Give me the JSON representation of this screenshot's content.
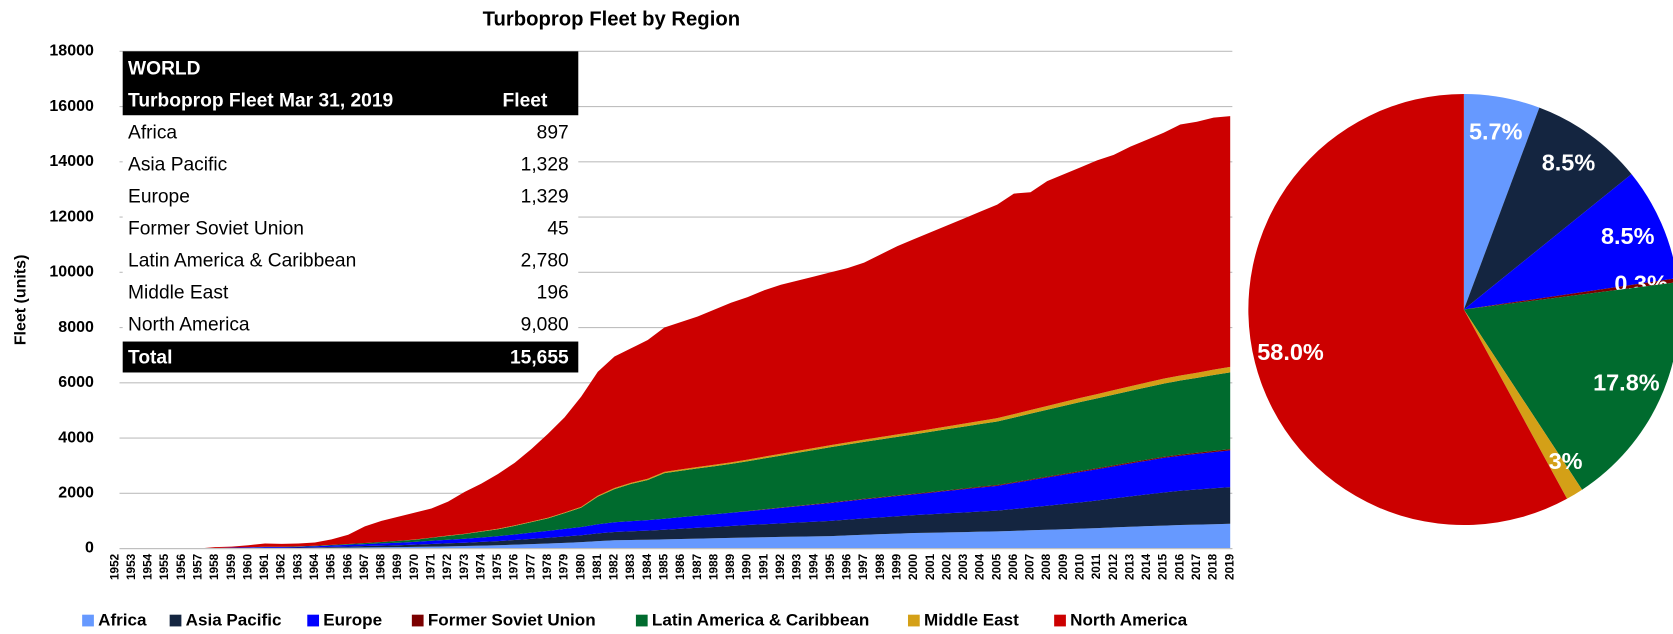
{
  "chart_data": [
    {
      "type": "area",
      "stacked": true,
      "title": "Turboprop Fleet by Region",
      "y_label": "Fleet (units)",
      "x": [
        1952,
        1953,
        1954,
        1955,
        1956,
        1957,
        1958,
        1959,
        1960,
        1961,
        1962,
        1963,
        1964,
        1965,
        1966,
        1967,
        1968,
        1969,
        1970,
        1971,
        1972,
        1973,
        1974,
        1975,
        1976,
        1977,
        1978,
        1979,
        1980,
        1981,
        1982,
        1983,
        1984,
        1985,
        1986,
        1987,
        1988,
        1989,
        1990,
        1991,
        1992,
        1993,
        1994,
        1995,
        1996,
        1997,
        1998,
        1999,
        2000,
        2001,
        2002,
        2003,
        2004,
        2005,
        2006,
        2007,
        2008,
        2009,
        2010,
        2011,
        2012,
        2013,
        2014,
        2015,
        2016,
        2017,
        2018,
        2019
      ],
      "xlim": [
        1952,
        2019
      ],
      "ylim": [
        0,
        18000
      ],
      "yticks": [
        0,
        2000,
        4000,
        6000,
        8000,
        10000,
        12000,
        14000,
        16000,
        18000
      ],
      "grid": true,
      "legend": "bottom",
      "series": [
        {
          "name": "Africa",
          "color": "#6699ff",
          "values": [
            0,
            0,
            0,
            0,
            0,
            0,
            5,
            8,
            10,
            15,
            15,
            18,
            22,
            30,
            35,
            40,
            45,
            50,
            60,
            70,
            80,
            90,
            105,
            120,
            140,
            160,
            180,
            205,
            230,
            270,
            300,
            310,
            320,
            330,
            345,
            360,
            370,
            385,
            400,
            410,
            420,
            430,
            440,
            450,
            475,
            500,
            520,
            540,
            560,
            570,
            585,
            595,
            610,
            620,
            640,
            660,
            680,
            700,
            720,
            740,
            765,
            790,
            810,
            830,
            850,
            865,
            880,
            897
          ]
        },
        {
          "name": "Asia Pacific",
          "color": "#142540",
          "values": [
            0,
            0,
            0,
            0,
            0,
            0,
            5,
            8,
            10,
            15,
            15,
            18,
            22,
            30,
            40,
            50,
            60,
            70,
            80,
            95,
            110,
            120,
            135,
            150,
            170,
            190,
            210,
            230,
            250,
            280,
            300,
            315,
            330,
            350,
            370,
            390,
            410,
            430,
            450,
            470,
            490,
            510,
            530,
            550,
            570,
            590,
            610,
            630,
            650,
            670,
            690,
            710,
            730,
            750,
            790,
            830,
            870,
            910,
            950,
            1000,
            1050,
            1100,
            1150,
            1200,
            1240,
            1270,
            1300,
            1328
          ]
        },
        {
          "name": "Europe",
          "color": "#0000ff",
          "values": [
            0,
            0,
            0,
            0,
            0,
            0,
            10,
            15,
            20,
            25,
            25,
            30,
            40,
            50,
            60,
            70,
            80,
            90,
            100,
            115,
            130,
            145,
            160,
            180,
            200,
            225,
            250,
            275,
            300,
            330,
            350,
            365,
            380,
            400,
            420,
            440,
            460,
            480,
            500,
            530,
            560,
            590,
            620,
            650,
            670,
            690,
            710,
            730,
            750,
            780,
            810,
            840,
            870,
            900,
            940,
            980,
            1020,
            1060,
            1100,
            1130,
            1160,
            1190,
            1220,
            1250,
            1270,
            1290,
            1310,
            1329
          ]
        },
        {
          "name": "Former Soviet Union",
          "color": "#7b0000",
          "values": [
            0,
            0,
            0,
            0,
            0,
            0,
            0,
            0,
            0,
            0,
            0,
            0,
            0,
            0,
            0,
            0,
            0,
            0,
            0,
            0,
            0,
            0,
            0,
            0,
            0,
            0,
            0,
            0,
            0,
            0,
            0,
            0,
            0,
            0,
            0,
            0,
            0,
            0,
            10,
            12,
            14,
            16,
            18,
            20,
            21,
            22,
            23,
            24,
            25,
            26,
            27,
            28,
            29,
            30,
            31,
            32,
            33,
            34,
            35,
            36,
            37,
            38,
            39,
            40,
            41,
            42,
            43,
            45
          ]
        },
        {
          "name": "Latin America & Caribbean",
          "color": "#006b2e",
          "values": [
            0,
            0,
            0,
            0,
            0,
            0,
            0,
            0,
            5,
            10,
            10,
            10,
            15,
            20,
            30,
            40,
            50,
            65,
            80,
            110,
            140,
            170,
            210,
            250,
            310,
            380,
            450,
            570,
            700,
            1000,
            1200,
            1350,
            1450,
            1650,
            1680,
            1710,
            1740,
            1770,
            1800,
            1840,
            1880,
            1920,
            1960,
            2000,
            2030,
            2060,
            2090,
            2120,
            2150,
            2180,
            2210,
            2240,
            2270,
            2300,
            2340,
            2380,
            2420,
            2460,
            2500,
            2530,
            2560,
            2590,
            2620,
            2650,
            2680,
            2710,
            2750,
            2780
          ]
        },
        {
          "name": "Middle East",
          "color": "#d4a017",
          "values": [
            0,
            0,
            0,
            0,
            0,
            0,
            0,
            0,
            0,
            0,
            0,
            0,
            0,
            0,
            0,
            0,
            0,
            0,
            5,
            5,
            10,
            10,
            15,
            15,
            20,
            20,
            25,
            25,
            30,
            35,
            40,
            40,
            45,
            45,
            50,
            50,
            55,
            55,
            60,
            63,
            66,
            69,
            72,
            75,
            78,
            81,
            84,
            87,
            90,
            96,
            102,
            108,
            114,
            120,
            126,
            132,
            138,
            144,
            150,
            156,
            162,
            168,
            174,
            180,
            184,
            188,
            192,
            196
          ]
        },
        {
          "name": "North America",
          "color": "#cc0000",
          "values": [
            0,
            0,
            0,
            0,
            0,
            0,
            30,
            39,
            75,
            115,
            105,
            104,
            121,
            200,
            335,
            600,
            765,
            875,
            975,
            1055,
            1230,
            1515,
            1725,
            1985,
            2260,
            2625,
            3035,
            3445,
            3990,
            4485,
            4760,
            4870,
            5025,
            5225,
            5335,
            5450,
            5615,
            5780,
            5880,
            6025,
            6120,
            6165,
            6210,
            6255,
            6306,
            6407,
            6613,
            6819,
            6975,
            7128,
            7276,
            7429,
            7577,
            7730,
            7983,
            7886,
            8139,
            8242,
            8345,
            8458,
            8516,
            8674,
            8787,
            8900,
            9085,
            9085,
            9125,
            9080
          ]
        }
      ]
    },
    {
      "type": "pie",
      "values": [
        5.7,
        8.5,
        8.5,
        0.3,
        17.8,
        1.3,
        58
      ],
      "value_labels": [
        "5.7%",
        "8.5%",
        "8.5%",
        "0.3%",
        "17.8%",
        "1.3%",
        "58.0%"
      ],
      "colors": [
        "#6699ff",
        "#142540",
        "#0000ff",
        "#7b0000",
        "#006b2e",
        "#d4a017",
        "#cc0000"
      ]
    }
  ],
  "table": {
    "title": "WORLD",
    "columns": [
      "Turboprop Fleet Mar 31, 2019",
      "Fleet"
    ],
    "rows": [
      [
        "Africa",
        "897"
      ],
      [
        "Asia Pacific",
        "1,328"
      ],
      [
        "Europe",
        "1,329"
      ],
      [
        "Former Soviet Union",
        "45"
      ],
      [
        "Latin America & Caribbean",
        "2,780"
      ],
      [
        "Middle East",
        "196"
      ],
      [
        "North America",
        "9,080"
      ]
    ],
    "total": [
      "Total",
      "15,655"
    ]
  }
}
